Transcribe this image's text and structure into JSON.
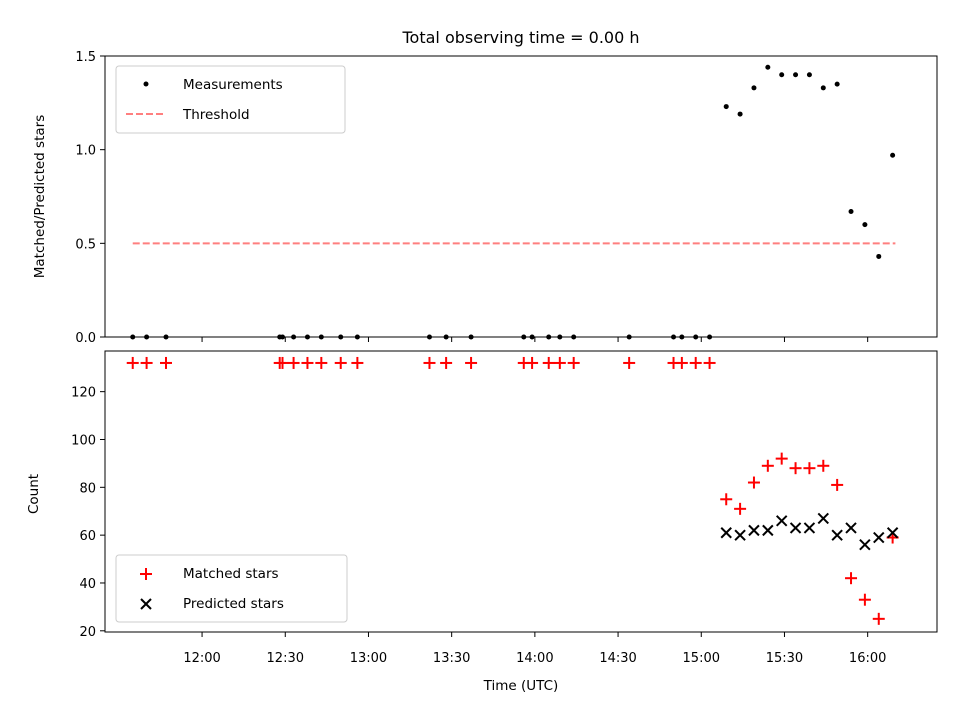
{
  "chart_data": [
    {
      "type": "scatter",
      "title": "Total observing time = 0.00 h",
      "ylabel": "Matched/Predicted stars",
      "xlim": [
        "11:25",
        "16:25"
      ],
      "ylim": [
        0,
        1.5
      ],
      "yticks": [
        "0.0",
        "0.5",
        "1.0",
        "1.5"
      ],
      "legend_position": "upper-left",
      "threshold": {
        "name": "Threshold",
        "value": 0.5,
        "x_start": "11:35",
        "x_end": "16:10",
        "color": "#ff7f7f"
      },
      "series": [
        {
          "name": "Measurements",
          "color": "#000000",
          "points": [
            [
              "11:35",
              0
            ],
            [
              "11:40",
              0
            ],
            [
              "11:47",
              0
            ],
            [
              "12:28",
              0
            ],
            [
              "12:29",
              0
            ],
            [
              "12:33",
              0
            ],
            [
              "12:38",
              0
            ],
            [
              "12:43",
              0
            ],
            [
              "12:50",
              0
            ],
            [
              "12:56",
              0
            ],
            [
              "13:22",
              0
            ],
            [
              "13:28",
              0
            ],
            [
              "13:37",
              0
            ],
            [
              "13:56",
              0
            ],
            [
              "13:59",
              0
            ],
            [
              "14:05",
              0
            ],
            [
              "14:09",
              0
            ],
            [
              "14:14",
              0
            ],
            [
              "14:34",
              0
            ],
            [
              "14:50",
              0
            ],
            [
              "14:53",
              0
            ],
            [
              "14:58",
              0
            ],
            [
              "15:03",
              0
            ],
            [
              "15:09",
              1.23
            ],
            [
              "15:14",
              1.19
            ],
            [
              "15:19",
              1.33
            ],
            [
              "15:24",
              1.44
            ],
            [
              "15:29",
              1.4
            ],
            [
              "15:34",
              1.4
            ],
            [
              "15:39",
              1.4
            ],
            [
              "15:44",
              1.33
            ],
            [
              "15:49",
              1.35
            ],
            [
              "15:54",
              0.67
            ],
            [
              "15:59",
              0.6
            ],
            [
              "16:04",
              0.43
            ],
            [
              "16:09",
              0.97
            ]
          ]
        }
      ]
    },
    {
      "type": "scatter",
      "xlabel": "Time (UTC)",
      "ylabel": "Count",
      "xlim": [
        "11:25",
        "16:25"
      ],
      "ylim": [
        19.5,
        137
      ],
      "xticks": [
        "12:00",
        "12:30",
        "13:00",
        "13:30",
        "14:00",
        "14:30",
        "15:00",
        "15:30",
        "16:00"
      ],
      "yticks": [
        "20",
        "40",
        "60",
        "80",
        "100",
        "120"
      ],
      "legend_position": "lower-left",
      "series": [
        {
          "name": "Matched stars",
          "marker": "+",
          "color": "#ff0000",
          "points": [
            [
              "11:35",
              132
            ],
            [
              "11:40",
              132
            ],
            [
              "11:47",
              132
            ],
            [
              "12:28",
              132
            ],
            [
              "12:29",
              132
            ],
            [
              "12:33",
              132
            ],
            [
              "12:38",
              132
            ],
            [
              "12:43",
              132
            ],
            [
              "12:50",
              132
            ],
            [
              "12:56",
              132
            ],
            [
              "13:22",
              132
            ],
            [
              "13:28",
              132
            ],
            [
              "13:37",
              132
            ],
            [
              "13:56",
              132
            ],
            [
              "13:59",
              132
            ],
            [
              "14:05",
              132
            ],
            [
              "14:09",
              132
            ],
            [
              "14:14",
              132
            ],
            [
              "14:34",
              132
            ],
            [
              "14:50",
              132
            ],
            [
              "14:53",
              132
            ],
            [
              "14:58",
              132
            ],
            [
              "15:03",
              132
            ],
            [
              "15:09",
              75
            ],
            [
              "15:14",
              71
            ],
            [
              "15:19",
              82
            ],
            [
              "15:24",
              89
            ],
            [
              "15:29",
              92
            ],
            [
              "15:34",
              88
            ],
            [
              "15:39",
              88
            ],
            [
              "15:44",
              89
            ],
            [
              "15:49",
              81
            ],
            [
              "15:54",
              42
            ],
            [
              "15:59",
              33
            ],
            [
              "16:04",
              25
            ],
            [
              "16:09",
              59
            ]
          ]
        },
        {
          "name": "Predicted stars",
          "marker": "x",
          "color": "#000000",
          "points": [
            [
              "15:09",
              61
            ],
            [
              "15:14",
              60
            ],
            [
              "15:19",
              62
            ],
            [
              "15:24",
              62
            ],
            [
              "15:29",
              66
            ],
            [
              "15:34",
              63
            ],
            [
              "15:39",
              63
            ],
            [
              "15:44",
              67
            ],
            [
              "15:49",
              60
            ],
            [
              "15:54",
              63
            ],
            [
              "15:59",
              56
            ],
            [
              "16:04",
              59
            ],
            [
              "16:09",
              61
            ]
          ]
        }
      ]
    }
  ]
}
